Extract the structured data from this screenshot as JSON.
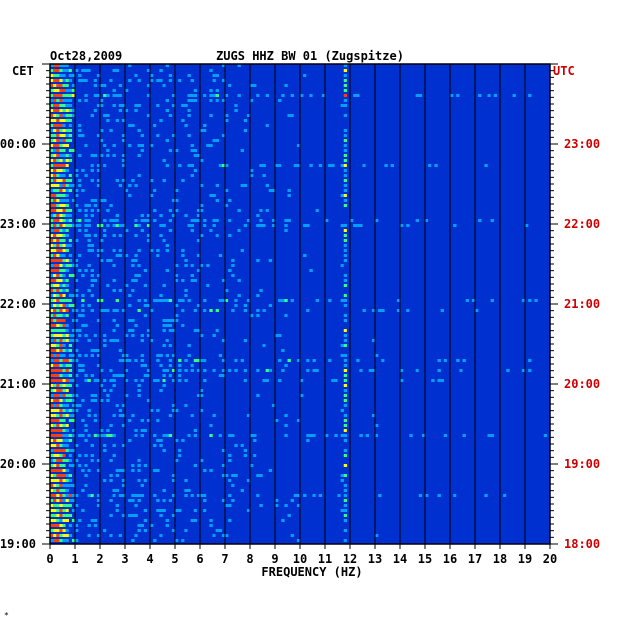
{
  "chart_data": {
    "type": "heatmap",
    "title_date": "Oct28,2009",
    "title": "ZUGS HHZ BW 01 (Zugspitze)",
    "xlabel": "FREQUENCY (HZ)",
    "left_timezone": "CET",
    "right_timezone": "UTC",
    "xlim": [
      0,
      20
    ],
    "x_ticks": [
      "0",
      "1",
      "2",
      "3",
      "4",
      "5",
      "6",
      "7",
      "8",
      "9",
      "10",
      "11",
      "12",
      "13",
      "14",
      "15",
      "16",
      "17",
      "18",
      "19",
      "20"
    ],
    "y_range_utc_hours": [
      18,
      24
    ],
    "left_time_labels": [
      "00:00",
      "23:00",
      "22:00",
      "21:00",
      "20:00",
      "19:00"
    ],
    "left_time_hours": [
      23,
      22,
      21,
      20,
      19,
      18
    ],
    "right_time_labels": [
      "23:00",
      "22:00",
      "21:00",
      "20:00",
      "19:00",
      "18:00"
    ],
    "right_time_hours": [
      23,
      22,
      21,
      20,
      19,
      18
    ],
    "grid": true,
    "colormap": [
      "#00008c",
      "#0030d0",
      "#00a0ff",
      "#30ff80",
      "#ffff00",
      "#ff4000"
    ],
    "dominant_frequencies_hz": [
      0.3,
      11.8,
      13.0,
      14.5
    ],
    "colors": {
      "text": "#000000",
      "utc_text": "#cc0000",
      "background": "#ffffff"
    }
  },
  "footnote": "*"
}
